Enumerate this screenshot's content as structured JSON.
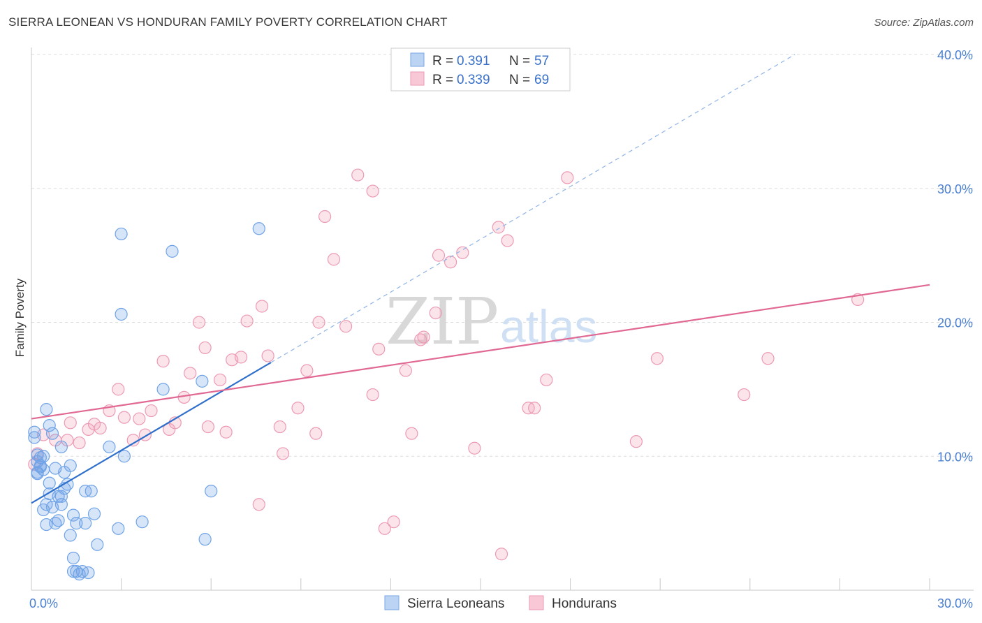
{
  "header": {
    "title": "SIERRA LEONEAN VS HONDURAN FAMILY POVERTY CORRELATION CHART",
    "source": "Source: ZipAtlas.com"
  },
  "watermark": {
    "zip": "ZIP",
    "atlas": "atlas"
  },
  "legend_top": {
    "rows": [
      {
        "r_label": "R =",
        "r_value": "0.391",
        "n_label": "N =",
        "n_value": "57"
      },
      {
        "r_label": "R =",
        "r_value": "0.339",
        "n_label": "N =",
        "n_value": "69"
      }
    ]
  },
  "chart_data": {
    "type": "scatter",
    "title": "SIERRA LEONEAN VS HONDURAN FAMILY POVERTY CORRELATION CHART",
    "xlabel": "",
    "ylabel": "Family Poverty",
    "xlim": [
      0,
      30
    ],
    "ylim": [
      0,
      40
    ],
    "x_tick_labels": [
      "0.0%",
      "30.0%"
    ],
    "y_tick_labels": [
      "10.0%",
      "20.0%",
      "30.0%",
      "40.0%"
    ],
    "y_ticks": [
      10,
      20,
      30,
      40
    ],
    "grid": true,
    "legend_position": "bottom",
    "colors": {
      "sierra": "#6fa3e6",
      "sierra_line": "#2f6fcc",
      "honduran": "#f0a0b8",
      "honduran_line": "#e06892"
    },
    "series": [
      {
        "name": "Sierra Leoneans",
        "r": 0.391,
        "n": 57,
        "trend": {
          "x0": 0,
          "y0": 6.5,
          "x1": 8,
          "y1": 17.0,
          "dash_x1": 25.5,
          "dash_y1": 40
        },
        "points": [
          [
            0.1,
            11.8
          ],
          [
            0.1,
            11.4
          ],
          [
            0.2,
            10.1
          ],
          [
            0.2,
            9.6
          ],
          [
            0.2,
            8.7
          ],
          [
            0.3,
            9.9
          ],
          [
            0.3,
            9.3
          ],
          [
            0.4,
            10.0
          ],
          [
            0.4,
            9.0
          ],
          [
            0.5,
            13.5
          ],
          [
            0.6,
            12.3
          ],
          [
            0.6,
            8.0
          ],
          [
            0.6,
            7.2
          ],
          [
            0.5,
            6.4
          ],
          [
            0.4,
            6.0
          ],
          [
            0.5,
            4.9
          ],
          [
            0.7,
            6.2
          ],
          [
            0.7,
            11.7
          ],
          [
            0.8,
            9.1
          ],
          [
            0.8,
            5.0
          ],
          [
            0.9,
            5.2
          ],
          [
            1.0,
            10.7
          ],
          [
            1.0,
            6.4
          ],
          [
            1.0,
            7.0
          ],
          [
            1.1,
            8.8
          ],
          [
            1.1,
            7.6
          ],
          [
            1.2,
            7.9
          ],
          [
            1.3,
            9.3
          ],
          [
            1.3,
            4.1
          ],
          [
            1.4,
            5.6
          ],
          [
            1.4,
            2.4
          ],
          [
            1.5,
            5.0
          ],
          [
            1.4,
            1.4
          ],
          [
            1.5,
            1.4
          ],
          [
            1.6,
            1.2
          ],
          [
            1.7,
            1.4
          ],
          [
            1.8,
            7.4
          ],
          [
            1.8,
            5.0
          ],
          [
            1.9,
            1.3
          ],
          [
            2.0,
            7.4
          ],
          [
            2.1,
            5.7
          ],
          [
            2.2,
            3.4
          ],
          [
            2.6,
            10.7
          ],
          [
            2.9,
            4.6
          ],
          [
            3.0,
            26.6
          ],
          [
            3.0,
            20.6
          ],
          [
            3.1,
            10.0
          ],
          [
            3.7,
            5.1
          ],
          [
            4.4,
            15.0
          ],
          [
            4.7,
            25.3
          ],
          [
            5.7,
            15.6
          ],
          [
            5.8,
            3.8
          ],
          [
            6.0,
            7.4
          ],
          [
            7.6,
            27.0
          ],
          [
            0.3,
            9.2
          ],
          [
            0.2,
            8.8
          ],
          [
            0.9,
            7.0
          ]
        ]
      },
      {
        "name": "Hondurans",
        "r": 0.339,
        "n": 69,
        "trend": {
          "x0": 0,
          "y0": 12.8,
          "x1": 30,
          "y1": 22.8
        },
        "points": [
          [
            0.2,
            10.2
          ],
          [
            0.4,
            11.6
          ],
          [
            0.8,
            11.2
          ],
          [
            1.2,
            11.2
          ],
          [
            1.3,
            12.5
          ],
          [
            1.6,
            11.0
          ],
          [
            1.9,
            12.0
          ],
          [
            2.1,
            12.4
          ],
          [
            2.3,
            12.1
          ],
          [
            2.6,
            13.4
          ],
          [
            2.9,
            15.0
          ],
          [
            3.1,
            12.9
          ],
          [
            3.4,
            11.2
          ],
          [
            3.6,
            12.8
          ],
          [
            3.8,
            11.6
          ],
          [
            4.0,
            13.4
          ],
          [
            4.4,
            17.1
          ],
          [
            4.6,
            12.0
          ],
          [
            4.8,
            12.5
          ],
          [
            5.1,
            14.4
          ],
          [
            5.3,
            16.2
          ],
          [
            5.6,
            20.0
          ],
          [
            5.8,
            18.1
          ],
          [
            5.9,
            12.2
          ],
          [
            6.3,
            15.7
          ],
          [
            6.5,
            11.8
          ],
          [
            6.7,
            17.2
          ],
          [
            7.0,
            17.4
          ],
          [
            7.2,
            20.1
          ],
          [
            7.6,
            6.4
          ],
          [
            7.7,
            21.2
          ],
          [
            7.9,
            17.5
          ],
          [
            8.3,
            12.2
          ],
          [
            8.4,
            10.2
          ],
          [
            8.9,
            13.6
          ],
          [
            9.2,
            16.4
          ],
          [
            9.5,
            11.7
          ],
          [
            9.6,
            20.0
          ],
          [
            9.8,
            27.9
          ],
          [
            10.1,
            24.7
          ],
          [
            10.5,
            19.7
          ],
          [
            10.9,
            31.0
          ],
          [
            11.4,
            29.8
          ],
          [
            11.4,
            14.6
          ],
          [
            11.6,
            18.0
          ],
          [
            11.8,
            4.6
          ],
          [
            12.1,
            5.1
          ],
          [
            12.5,
            16.4
          ],
          [
            12.7,
            11.7
          ],
          [
            13.0,
            18.7
          ],
          [
            13.1,
            18.9
          ],
          [
            13.5,
            20.7
          ],
          [
            13.6,
            25.0
          ],
          [
            14.0,
            24.5
          ],
          [
            14.4,
            25.2
          ],
          [
            14.8,
            10.6
          ],
          [
            15.6,
            27.1
          ],
          [
            15.7,
            2.7
          ],
          [
            15.9,
            26.1
          ],
          [
            16.6,
            13.6
          ],
          [
            16.8,
            13.6
          ],
          [
            17.2,
            15.7
          ],
          [
            17.9,
            30.8
          ],
          [
            20.2,
            11.1
          ],
          [
            20.9,
            17.3
          ],
          [
            23.8,
            14.6
          ],
          [
            24.6,
            17.3
          ],
          [
            27.6,
            21.7
          ],
          [
            0.1,
            9.4
          ]
        ]
      }
    ]
  }
}
